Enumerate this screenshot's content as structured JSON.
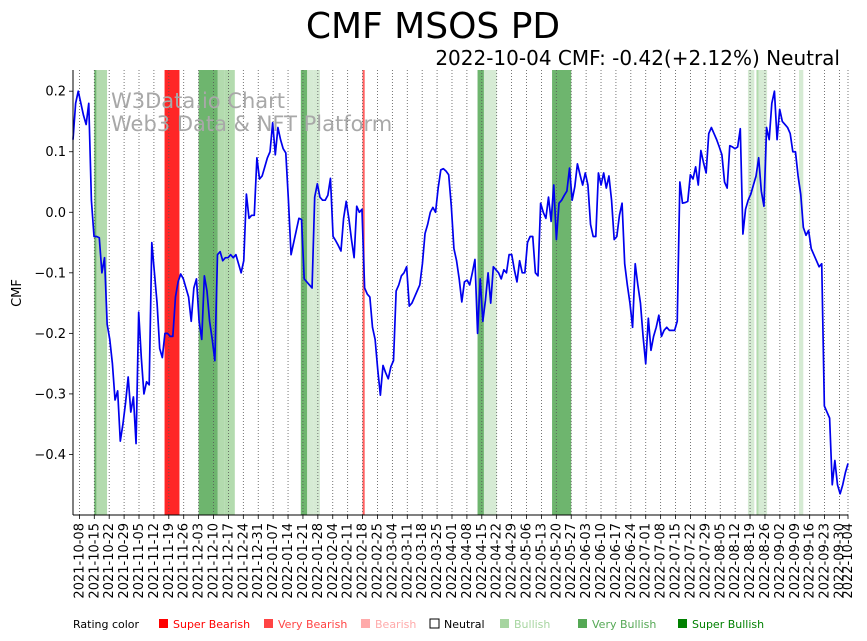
{
  "chart_data": {
    "type": "line",
    "title": "CMF MSOS PD",
    "subtitle": "2022-10-04 CMF: -0.42(+2.12%) Neutral",
    "ylabel": "CMF",
    "xlabel": "",
    "ylim": [
      -0.5,
      0.235
    ],
    "yticks": [
      0.2,
      0.1,
      0.0,
      -0.1,
      -0.2,
      -0.3,
      -0.4
    ],
    "ytick_labels": [
      "0.2",
      "0.1",
      "0.0",
      "−0.1",
      "−0.2",
      "−0.3",
      "−0.4"
    ],
    "x_start": "2021-10-05",
    "x_end": "2022-10-04",
    "xtick_labels": [
      "2021-10-08",
      "2021-10-15",
      "2021-10-22",
      "2021-10-29",
      "2021-11-05",
      "2021-11-12",
      "2021-11-19",
      "2021-11-26",
      "2021-12-03",
      "2021-12-10",
      "2021-12-17",
      "2021-12-24",
      "2021-12-31",
      "2022-01-07",
      "2022-01-14",
      "2022-01-21",
      "2022-01-28",
      "2022-02-04",
      "2022-02-11",
      "2022-02-18",
      "2022-02-25",
      "2022-03-04",
      "2022-03-11",
      "2022-03-18",
      "2022-03-25",
      "2022-04-01",
      "2022-04-08",
      "2022-04-15",
      "2022-04-22",
      "2022-04-29",
      "2022-05-06",
      "2022-05-13",
      "2022-05-20",
      "2022-05-27",
      "2022-06-03",
      "2022-06-10",
      "2022-06-17",
      "2022-06-24",
      "2022-07-01",
      "2022-07-08",
      "2022-07-15",
      "2022-07-22",
      "2022-07-29",
      "2022-08-05",
      "2022-08-12",
      "2022-08-19",
      "2022-08-26",
      "2022-09-02",
      "2022-09-09",
      "2022-09-16",
      "2022-09-23",
      "2022-09-30",
      "2022-10-04"
    ],
    "line_color": "#0000ee",
    "series": [
      {
        "name": "CMF",
        "values": [
          0.12,
          0.18,
          0.2,
          0.18,
          0.16,
          0.145,
          0.18,
          0.02,
          -0.04,
          -0.04,
          -0.042,
          -0.1,
          -0.075,
          -0.185,
          -0.21,
          -0.25,
          -0.31,
          -0.295,
          -0.378,
          -0.35,
          -0.315,
          -0.272,
          -0.33,
          -0.305,
          -0.382,
          -0.165,
          -0.24,
          -0.3,
          -0.28,
          -0.285,
          -0.05,
          -0.1,
          -0.15,
          -0.225,
          -0.24,
          -0.2,
          -0.2,
          -0.205,
          -0.205,
          -0.14,
          -0.115,
          -0.102,
          -0.11,
          -0.125,
          -0.14,
          -0.18,
          -0.125,
          -0.11,
          -0.18,
          -0.21,
          -0.105,
          -0.13,
          -0.18,
          -0.21,
          -0.245,
          -0.07,
          -0.065,
          -0.08,
          -0.075,
          -0.075,
          -0.07,
          -0.075,
          -0.07,
          -0.085,
          -0.1,
          -0.08,
          0.03,
          -0.01,
          -0.005,
          -0.005,
          0.09,
          0.055,
          0.06,
          0.075,
          0.09,
          0.1,
          0.148,
          0.095,
          0.14,
          0.12,
          0.105,
          0.098,
          0.02,
          -0.07,
          -0.05,
          -0.03,
          -0.01,
          -0.012,
          -0.11,
          -0.115,
          -0.12,
          -0.125,
          0.025,
          0.047,
          0.025,
          0.02,
          0.02,
          0.028,
          0.056,
          -0.04,
          -0.047,
          -0.055,
          -0.064,
          -0.01,
          0.018,
          -0.01,
          -0.045,
          -0.075,
          0.01,
          0.0,
          0.005,
          -0.125,
          -0.135,
          -0.14,
          -0.19,
          -0.21,
          -0.26,
          -0.302,
          -0.253,
          -0.265,
          -0.275,
          -0.255,
          -0.245,
          -0.13,
          -0.12,
          -0.105,
          -0.1,
          -0.09,
          -0.155,
          -0.15,
          -0.14,
          -0.13,
          -0.12,
          -0.085,
          -0.035,
          -0.02,
          0.0,
          0.008,
          0.0,
          0.04,
          0.07,
          0.072,
          0.068,
          0.062,
          0.01,
          -0.06,
          -0.08,
          -0.11,
          -0.148,
          -0.115,
          -0.112,
          -0.12,
          -0.1,
          -0.078,
          -0.2,
          -0.11,
          -0.18,
          -0.145,
          -0.1,
          -0.15,
          -0.09,
          -0.095,
          -0.1,
          -0.11,
          -0.095,
          -0.1,
          -0.07,
          -0.07,
          -0.095,
          -0.115,
          -0.08,
          -0.1,
          -0.1,
          -0.05,
          -0.04,
          -0.04,
          -0.1,
          -0.105,
          0.015,
          0.0,
          -0.01,
          0.025,
          -0.015,
          0.045,
          -0.045,
          0.015,
          0.02,
          0.028,
          0.035,
          0.073,
          0.02,
          0.042,
          0.08,
          0.062,
          0.045,
          0.065,
          0.045,
          -0.02,
          -0.04,
          -0.04,
          0.065,
          0.045,
          0.065,
          0.04,
          0.06,
          0.02,
          -0.045,
          -0.04,
          -0.005,
          0.015,
          -0.085,
          -0.12,
          -0.15,
          -0.19,
          -0.085,
          -0.12,
          -0.15,
          -0.205,
          -0.25,
          -0.175,
          -0.228,
          -0.205,
          -0.19,
          -0.17,
          -0.205,
          -0.195,
          -0.19,
          -0.195,
          -0.195,
          -0.195,
          -0.18,
          0.05,
          0.015,
          0.016,
          0.018,
          0.062,
          0.055,
          0.075,
          0.045,
          0.102,
          0.082,
          0.065,
          0.13,
          0.14,
          0.13,
          0.12,
          0.108,
          0.095,
          0.05,
          0.04,
          0.11,
          0.108,
          0.105,
          0.108,
          0.138,
          -0.036,
          0.005,
          0.02,
          0.03,
          0.045,
          0.06,
          0.09,
          0.035,
          0.01,
          0.14,
          0.12,
          0.18,
          0.2,
          0.12,
          0.17,
          0.15,
          0.145,
          0.14,
          0.13,
          0.1,
          0.1,
          0.06,
          0.03,
          -0.025,
          -0.038,
          -0.03,
          -0.06,
          -0.07,
          -0.08,
          -0.09,
          -0.085,
          -0.32,
          -0.33,
          -0.34,
          -0.45,
          -0.41,
          -0.45,
          -0.465,
          -0.45,
          -0.43,
          -0.415
        ]
      }
    ],
    "rating_bands": [
      {
        "start": "2021-10-15",
        "end": "2021-10-16",
        "rating": "Very Bullish"
      },
      {
        "start": "2021-10-16",
        "end": "2021-10-21",
        "rating": "Bullish"
      },
      {
        "start": "2021-11-17",
        "end": "2021-11-24",
        "rating": "Super Bearish"
      },
      {
        "start": "2021-12-03",
        "end": "2021-12-12",
        "rating": "Very Bullish"
      },
      {
        "start": "2021-12-12",
        "end": "2021-12-15",
        "rating": "Bullish"
      },
      {
        "start": "2021-12-15",
        "end": "2021-12-20",
        "rating": "Bullish"
      },
      {
        "start": "2022-01-20",
        "end": "2022-01-23",
        "rating": "Very Bullish"
      },
      {
        "start": "2022-01-23",
        "end": "2022-01-26",
        "rating": "Neutral-Bullish"
      },
      {
        "start": "2022-01-26",
        "end": "2022-01-29",
        "rating": "Neutral-Bullish"
      },
      {
        "start": "2022-02-18",
        "end": "2022-02-19",
        "rating": "Very Bearish"
      },
      {
        "start": "2022-04-13",
        "end": "2022-04-16",
        "rating": "Very Bullish"
      },
      {
        "start": "2022-04-16",
        "end": "2022-04-22",
        "rating": "Neutral-Bullish"
      },
      {
        "start": "2022-05-18",
        "end": "2022-05-27",
        "rating": "Very Bullish"
      },
      {
        "start": "2022-08-18",
        "end": "2022-08-21",
        "rating": "Neutral-Bullish"
      },
      {
        "start": "2022-08-22",
        "end": "2022-08-23",
        "rating": "Bullish"
      },
      {
        "start": "2022-08-23",
        "end": "2022-08-27",
        "rating": "Neutral-Bullish"
      },
      {
        "start": "2022-09-11",
        "end": "2022-09-13",
        "rating": "Neutral-Bullish"
      }
    ],
    "rating_colors": {
      "Super Bearish": "#ff0000",
      "Very Bearish": "#ff4444",
      "Bearish": "#ffaaaa",
      "Neutral": "#ffffff",
      "Bullish": "#a6d5a0",
      "Very Bullish": "#55a855",
      "Super Bullish": "#008000",
      "Neutral-Bullish": "#cfe8cc"
    },
    "watermark": [
      "W3Data.io Chart",
      "Web3 Data & NFT Platform"
    ],
    "legend": {
      "title": "Rating color",
      "items": [
        {
          "label": "Super Bearish",
          "color": "#ff0000",
          "text_color": "#ff0000"
        },
        {
          "label": "Very Bearish",
          "color": "#ff4444",
          "text_color": "#ff4444"
        },
        {
          "label": "Bearish",
          "color": "#ffaaaa",
          "text_color": "#ffaaaa"
        },
        {
          "label": "Neutral",
          "color": "#ffffff",
          "text_color": "#000000"
        },
        {
          "label": "Bullish",
          "color": "#a6d5a0",
          "text_color": "#a6d5a0"
        },
        {
          "label": "Very Bullish",
          "color": "#55a855",
          "text_color": "#55a855"
        },
        {
          "label": "Super Bullish",
          "color": "#008000",
          "text_color": "#008000"
        }
      ]
    }
  }
}
